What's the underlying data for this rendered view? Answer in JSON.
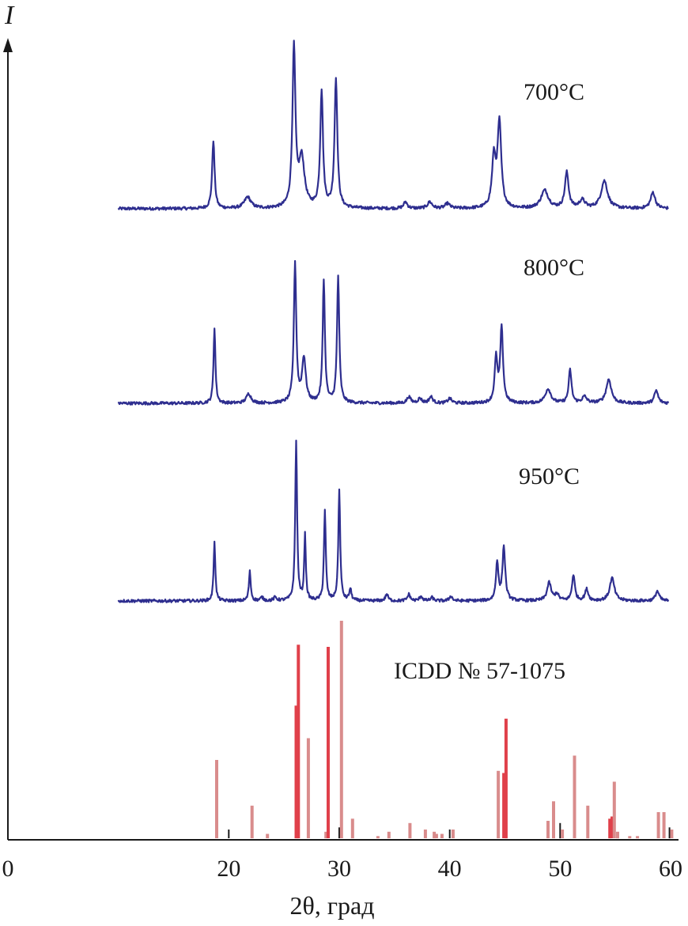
{
  "chart_data": {
    "type": "line",
    "title": "",
    "xlabel": "2θ, град",
    "ylabel": "I",
    "xlim": [
      0,
      60
    ],
    "xticks": [
      0,
      20,
      30,
      40,
      50,
      60
    ],
    "grid": false,
    "series": [
      {
        "name": "700°C",
        "color": "#2e2e8f",
        "baseline": 0.02,
        "peaks": [
          {
            "x": 18.6,
            "h": 0.42,
            "w": 0.13
          },
          {
            "x": 21.7,
            "h": 0.07,
            "w": 0.35
          },
          {
            "x": 25.9,
            "h": 0.98,
            "w": 0.16
          },
          {
            "x": 26.6,
            "h": 0.3,
            "w": 0.3
          },
          {
            "x": 28.4,
            "h": 0.72,
            "w": 0.15
          },
          {
            "x": 29.7,
            "h": 0.8,
            "w": 0.15
          },
          {
            "x": 36.0,
            "h": 0.04,
            "w": 0.2
          },
          {
            "x": 38.2,
            "h": 0.04,
            "w": 0.25
          },
          {
            "x": 39.8,
            "h": 0.03,
            "w": 0.25
          },
          {
            "x": 44.0,
            "h": 0.3,
            "w": 0.2
          },
          {
            "x": 44.5,
            "h": 0.52,
            "w": 0.2
          },
          {
            "x": 48.6,
            "h": 0.11,
            "w": 0.4
          },
          {
            "x": 50.6,
            "h": 0.22,
            "w": 0.2
          },
          {
            "x": 52.0,
            "h": 0.05,
            "w": 0.3
          },
          {
            "x": 54.0,
            "h": 0.17,
            "w": 0.35
          },
          {
            "x": 58.4,
            "h": 0.1,
            "w": 0.25
          }
        ]
      },
      {
        "name": "800°C",
        "color": "#2e2e8f",
        "baseline": 0.02,
        "peaks": [
          {
            "x": 18.7,
            "h": 0.48,
            "w": 0.1
          },
          {
            "x": 21.8,
            "h": 0.06,
            "w": 0.25
          },
          {
            "x": 26.0,
            "h": 0.88,
            "w": 0.13
          },
          {
            "x": 26.8,
            "h": 0.28,
            "w": 0.2
          },
          {
            "x": 28.6,
            "h": 0.78,
            "w": 0.12
          },
          {
            "x": 29.9,
            "h": 0.8,
            "w": 0.12
          },
          {
            "x": 36.3,
            "h": 0.04,
            "w": 0.2
          },
          {
            "x": 37.3,
            "h": 0.03,
            "w": 0.2
          },
          {
            "x": 38.3,
            "h": 0.04,
            "w": 0.2
          },
          {
            "x": 40.0,
            "h": 0.03,
            "w": 0.2
          },
          {
            "x": 44.2,
            "h": 0.28,
            "w": 0.15
          },
          {
            "x": 44.7,
            "h": 0.47,
            "w": 0.15
          },
          {
            "x": 48.9,
            "h": 0.09,
            "w": 0.3
          },
          {
            "x": 50.9,
            "h": 0.21,
            "w": 0.15
          },
          {
            "x": 52.2,
            "h": 0.04,
            "w": 0.25
          },
          {
            "x": 54.4,
            "h": 0.15,
            "w": 0.28
          },
          {
            "x": 58.7,
            "h": 0.08,
            "w": 0.2
          }
        ]
      },
      {
        "name": "950°C",
        "color": "#2e2e8f",
        "baseline": 0.02,
        "peaks": [
          {
            "x": 18.7,
            "h": 0.37,
            "w": 0.09
          },
          {
            "x": 21.9,
            "h": 0.18,
            "w": 0.1
          },
          {
            "x": 23.0,
            "h": 0.02,
            "w": 0.15
          },
          {
            "x": 24.2,
            "h": 0.02,
            "w": 0.15
          },
          {
            "x": 26.1,
            "h": 0.99,
            "w": 0.1
          },
          {
            "x": 26.9,
            "h": 0.4,
            "w": 0.09
          },
          {
            "x": 28.7,
            "h": 0.55,
            "w": 0.1
          },
          {
            "x": 30.0,
            "h": 0.68,
            "w": 0.1
          },
          {
            "x": 31.0,
            "h": 0.07,
            "w": 0.12
          },
          {
            "x": 34.3,
            "h": 0.04,
            "w": 0.15
          },
          {
            "x": 36.3,
            "h": 0.04,
            "w": 0.15
          },
          {
            "x": 37.4,
            "h": 0.03,
            "w": 0.15
          },
          {
            "x": 38.4,
            "h": 0.02,
            "w": 0.15
          },
          {
            "x": 40.1,
            "h": 0.03,
            "w": 0.15
          },
          {
            "x": 44.3,
            "h": 0.24,
            "w": 0.13
          },
          {
            "x": 44.9,
            "h": 0.33,
            "w": 0.15
          },
          {
            "x": 49.0,
            "h": 0.11,
            "w": 0.22
          },
          {
            "x": 49.7,
            "h": 0.04,
            "w": 0.2
          },
          {
            "x": 51.2,
            "h": 0.16,
            "w": 0.15
          },
          {
            "x": 52.4,
            "h": 0.07,
            "w": 0.18
          },
          {
            "x": 54.7,
            "h": 0.14,
            "w": 0.25
          },
          {
            "x": 58.8,
            "h": 0.06,
            "w": 0.2
          }
        ]
      },
      {
        "name": "ICDD № 57-1075",
        "type": "bar",
        "color": "#d98c8c",
        "accent_color": "#e0404a",
        "sticks": [
          {
            "x": 18.9,
            "h": 0.36,
            "c": "pink"
          },
          {
            "x": 20.0,
            "h": 0.04,
            "c": "black"
          },
          {
            "x": 22.1,
            "h": 0.15,
            "c": "pink"
          },
          {
            "x": 23.5,
            "h": 0.02,
            "c": "pink"
          },
          {
            "x": 26.1,
            "h": 0.61,
            "c": "red"
          },
          {
            "x": 26.3,
            "h": 0.89,
            "c": "red"
          },
          {
            "x": 27.2,
            "h": 0.46,
            "c": "pink"
          },
          {
            "x": 28.8,
            "h": 0.03,
            "c": "pink"
          },
          {
            "x": 29.0,
            "h": 0.88,
            "c": "red"
          },
          {
            "x": 30.0,
            "h": 0.05,
            "c": "black"
          },
          {
            "x": 30.2,
            "h": 1.0,
            "c": "pink"
          },
          {
            "x": 31.2,
            "h": 0.09,
            "c": "pink"
          },
          {
            "x": 33.5,
            "h": 0.01,
            "c": "pink"
          },
          {
            "x": 34.5,
            "h": 0.03,
            "c": "pink"
          },
          {
            "x": 36.4,
            "h": 0.07,
            "c": "pink"
          },
          {
            "x": 37.8,
            "h": 0.04,
            "c": "pink"
          },
          {
            "x": 38.6,
            "h": 0.03,
            "c": "pink"
          },
          {
            "x": 38.8,
            "h": 0.02,
            "c": "pink"
          },
          {
            "x": 39.3,
            "h": 0.02,
            "c": "pink"
          },
          {
            "x": 40.0,
            "h": 0.04,
            "c": "black"
          },
          {
            "x": 40.3,
            "h": 0.04,
            "c": "pink"
          },
          {
            "x": 44.4,
            "h": 0.31,
            "c": "pink"
          },
          {
            "x": 44.9,
            "h": 0.3,
            "c": "red"
          },
          {
            "x": 45.1,
            "h": 0.55,
            "c": "red"
          },
          {
            "x": 48.9,
            "h": 0.08,
            "c": "pink"
          },
          {
            "x": 49.4,
            "h": 0.17,
            "c": "pink"
          },
          {
            "x": 50.0,
            "h": 0.07,
            "c": "black"
          },
          {
            "x": 50.2,
            "h": 0.04,
            "c": "pink"
          },
          {
            "x": 51.3,
            "h": 0.38,
            "c": "pink"
          },
          {
            "x": 52.5,
            "h": 0.15,
            "c": "pink"
          },
          {
            "x": 54.5,
            "h": 0.09,
            "c": "red"
          },
          {
            "x": 54.7,
            "h": 0.1,
            "c": "red"
          },
          {
            "x": 54.9,
            "h": 0.26,
            "c": "pink"
          },
          {
            "x": 55.2,
            "h": 0.03,
            "c": "pink"
          },
          {
            "x": 56.3,
            "h": 0.01,
            "c": "pink"
          },
          {
            "x": 57.0,
            "h": 0.01,
            "c": "pink"
          },
          {
            "x": 58.9,
            "h": 0.12,
            "c": "pink"
          },
          {
            "x": 59.4,
            "h": 0.12,
            "c": "pink"
          },
          {
            "x": 59.9,
            "h": 0.05,
            "c": "black"
          },
          {
            "x": 60.1,
            "h": 0.04,
            "c": "pink"
          }
        ]
      }
    ]
  }
}
